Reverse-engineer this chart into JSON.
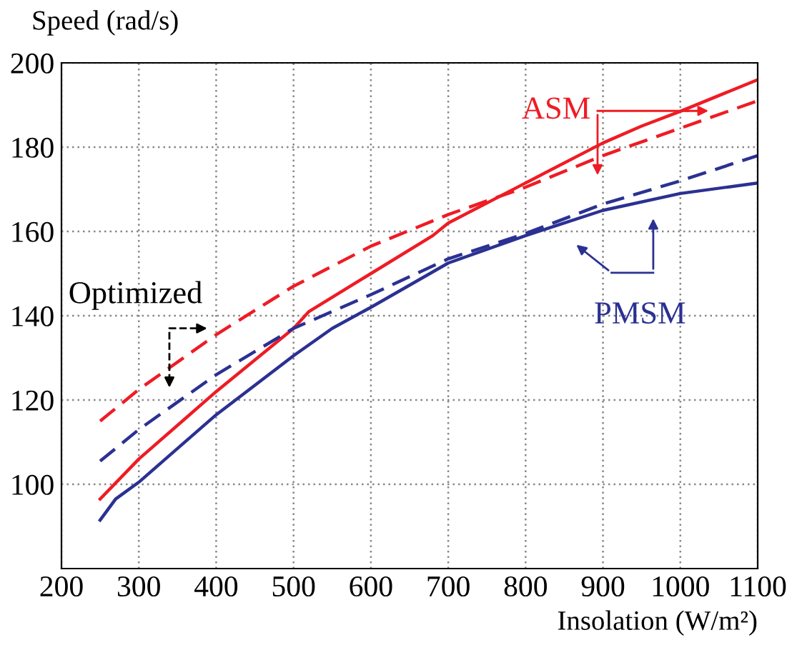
{
  "chart_data": {
    "type": "line",
    "xlabel": "Insolation (W/m²)",
    "ylabel": "Speed (rad/s)",
    "xlim": [
      200,
      1100
    ],
    "xticks": [
      200,
      300,
      400,
      500,
      600,
      700,
      800,
      900,
      1000,
      1100
    ],
    "ylim": [
      80,
      200
    ],
    "yticks": [
      100,
      120,
      140,
      160,
      180,
      200
    ],
    "grid": true,
    "marker": "none",
    "series": [
      {
        "color": "#ee1c25",
        "line_style": "solid",
        "x": [
          250,
          300,
          400,
          500,
          520,
          600,
          680,
          700,
          800,
          900,
          950,
          1000,
          1100
        ],
        "values": [
          96.5,
          106,
          122,
          137,
          141,
          150,
          159,
          162,
          171.5,
          181,
          185,
          188.5,
          196
        ]
      },
      {
        "color": "#ee1c25",
        "line_style": "dashed",
        "x": [
          250,
          300,
          400,
          500,
          600,
          700,
          800,
          900,
          1000,
          1100
        ],
        "values": [
          115,
          122.5,
          135.5,
          147,
          156.5,
          164,
          170.5,
          178,
          184.5,
          191
        ]
      },
      {
        "color": "#2b3192",
        "line_style": "solid",
        "x": [
          250,
          270,
          300,
          400,
          500,
          550,
          600,
          700,
          800,
          900,
          1000,
          1100
        ],
        "values": [
          91.5,
          96.5,
          100.5,
          116.5,
          130.5,
          137,
          142,
          152.5,
          159,
          165,
          169,
          171.5
        ]
      },
      {
        "color": "#2b3192",
        "line_style": "dashed",
        "x": [
          250,
          300,
          400,
          500,
          600,
          700,
          800,
          900,
          1000,
          1100
        ],
        "values": [
          105.5,
          113,
          126,
          137,
          145,
          153.5,
          159.5,
          166.5,
          172,
          178
        ]
      }
    ],
    "annotations": [
      "Optimized",
      "ASM",
      "PMSM"
    ]
  }
}
